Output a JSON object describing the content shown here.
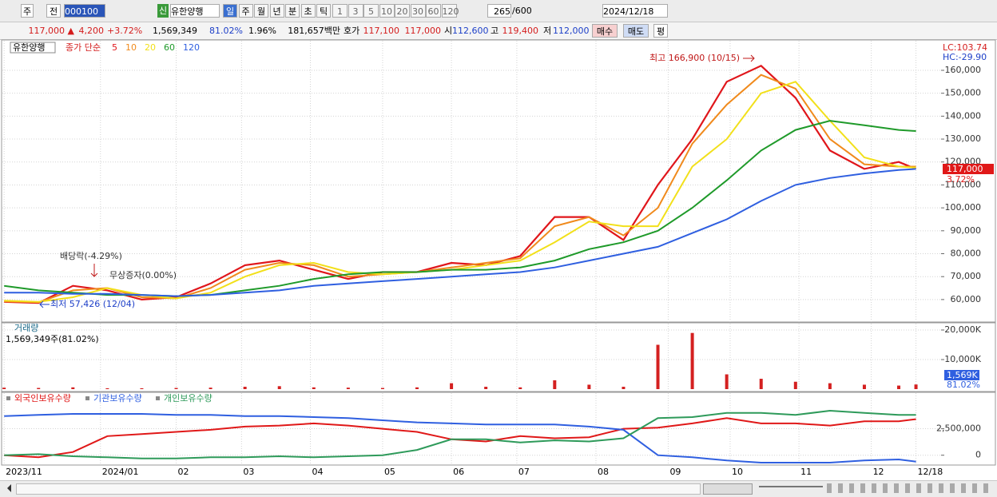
{
  "toolbar": {
    "period": "주",
    "prev": "전",
    "code": "000100",
    "badge": "신",
    "name": "유한양행",
    "units": [
      "일",
      "주",
      "월",
      "년",
      "분",
      "초",
      "틱"
    ],
    "steps": [
      "1",
      "3",
      "5",
      "10",
      "20",
      "30",
      "60",
      "120"
    ],
    "count": "265",
    "max": "/600",
    "date": "2024/12/18"
  },
  "quote": {
    "price": "117,000 ▲",
    "change": "4,200",
    "rate": "+3.72%",
    "volume": "1,569,349",
    "vol_ratio": "81.02%",
    "turnover": "1.96%",
    "amount": "181,657백만",
    "bid_label": "호가",
    "ask": "117,100",
    "bid": "117,000",
    "open_label": "시",
    "open": "112,600",
    "high_label": "고",
    "high": "119,400",
    "low_label": "저",
    "low": "112,000",
    "buy": "매수",
    "sell": "매도",
    "avg": "평"
  },
  "chart_data": [
    {
      "type": "line",
      "stock_name": "유한양행",
      "indicator": "종가 단순",
      "lc": "LC:103.74",
      "hc": "HC:-29.90",
      "annotations": [
        "최고 166,900 (10/15)",
        "배당락(-4.29%)",
        "무상증자(0.00%)",
        "최저 57,426 (12/04)"
      ],
      "last_price_label": "117,000",
      "last_change_label": "3.72%",
      "x": [
        0,
        10,
        20,
        30,
        40,
        50,
        60,
        70,
        80,
        90,
        100,
        110,
        120,
        130,
        140,
        150,
        160,
        170,
        180,
        190,
        200,
        210,
        220,
        230,
        240,
        250,
        260,
        265
      ],
      "xlim": [
        -0.5,
        272.3
      ],
      "ylim": [
        50200,
        171500
      ],
      "yticks": [
        {
          "value": 60000,
          "label": "60,000"
        },
        {
          "value": 70000,
          "label": "70,000"
        },
        {
          "value": 80000,
          "label": "80,000"
        },
        {
          "value": 90000,
          "label": "90,000"
        },
        {
          "value": 100000,
          "label": "100,000"
        },
        {
          "value": 110000,
          "label": "110,000"
        },
        {
          "value": 120000,
          "label": "120,000"
        },
        {
          "value": 130000,
          "label": "130,000"
        },
        {
          "value": 140000,
          "label": "140,000"
        },
        {
          "value": 150000,
          "label": "150,000"
        },
        {
          "value": 160000,
          "label": "160,000"
        }
      ],
      "series": [
        {
          "name": "5",
          "color": "#e0161b",
          "values": [
            59000,
            58500,
            66000,
            64000,
            60000,
            61000,
            67000,
            75000,
            77000,
            73000,
            69000,
            72000,
            72000,
            76000,
            75000,
            79000,
            96000,
            96000,
            86000,
            110000,
            130000,
            155000,
            162000,
            148000,
            125000,
            117000,
            120000,
            117000
          ]
        },
        {
          "name": "10",
          "color": "#f08a1c",
          "values": [
            59200,
            58800,
            64000,
            65000,
            61000,
            60500,
            65000,
            73000,
            76000,
            75000,
            70000,
            71000,
            72000,
            74000,
            76000,
            78000,
            92000,
            96000,
            88000,
            100000,
            128000,
            145000,
            158000,
            152000,
            130000,
            119000,
            118000,
            118000
          ]
        },
        {
          "name": "20",
          "color": "#f2e01a",
          "values": [
            59500,
            59000,
            61000,
            65000,
            62000,
            60500,
            63000,
            70000,
            75000,
            76000,
            72000,
            71000,
            72000,
            73000,
            75000,
            77000,
            85000,
            94000,
            92000,
            92000,
            118000,
            130000,
            150000,
            155000,
            138000,
            122000,
            118000,
            117500
          ]
        },
        {
          "name": "60",
          "color": "#1f9a2a",
          "values": [
            66000,
            64000,
            63000,
            62000,
            62000,
            61500,
            62000,
            64000,
            66000,
            69000,
            71000,
            72000,
            72000,
            73000,
            73000,
            74000,
            77000,
            82000,
            85000,
            90000,
            100000,
            112000,
            125000,
            134000,
            138000,
            136000,
            134000,
            133500
          ]
        },
        {
          "name": "120",
          "color": "#2f5fe0",
          "values": [
            63000,
            63000,
            62500,
            62500,
            62000,
            61500,
            62000,
            63000,
            64000,
            66000,
            67000,
            68000,
            69000,
            70000,
            71000,
            72000,
            74000,
            77000,
            80000,
            83000,
            89000,
            95000,
            103000,
            110000,
            113000,
            115000,
            116500,
            117000
          ]
        }
      ]
    },
    {
      "type": "bar",
      "title": "거래량",
      "subtitle": "1,569,349주(81.02%)",
      "last_label": "1,569K",
      "last_ratio": "81.02%",
      "color": "#d42020",
      "x": [
        0,
        10,
        20,
        30,
        40,
        50,
        60,
        70,
        80,
        90,
        100,
        110,
        120,
        130,
        140,
        150,
        160,
        170,
        180,
        190,
        200,
        210,
        220,
        230,
        240,
        250,
        260,
        265
      ],
      "xlim": [
        -0.5,
        272.3
      ],
      "ylim": [
        0,
        22160
      ],
      "yticks": [
        {
          "value": 10000,
          "label": "10,000K"
        },
        {
          "value": 20000,
          "label": "20,000K"
        }
      ],
      "values": [
        500,
        400,
        600,
        300,
        300,
        400,
        500,
        800,
        1000,
        600,
        500,
        400,
        600,
        2000,
        800,
        600,
        3000,
        1500,
        800,
        15000,
        19000,
        5000,
        3500,
        2500,
        2000,
        1500,
        1200,
        1569
      ]
    },
    {
      "type": "line",
      "x": [
        0,
        10,
        20,
        30,
        40,
        50,
        60,
        70,
        80,
        90,
        100,
        110,
        120,
        130,
        140,
        150,
        160,
        170,
        180,
        190,
        200,
        210,
        220,
        230,
        240,
        250,
        260,
        265
      ],
      "xlim": [
        -0.5,
        272.3
      ],
      "ylim": [
        -928000,
        5786000
      ],
      "yticks": [
        0,
        {
          "value": 2500000,
          "label": "2,500,000"
        }
      ],
      "xticks": [
        {
          "value": 0,
          "label": "2023/11"
        },
        {
          "value": 28,
          "label": "2024/01"
        },
        {
          "value": 50,
          "label": "02"
        },
        {
          "value": 69,
          "label": "03"
        },
        {
          "value": 89,
          "label": "04"
        },
        {
          "value": 110,
          "label": "05"
        },
        {
          "value": 130,
          "label": "06"
        },
        {
          "value": 149,
          "label": "07"
        },
        {
          "value": 172,
          "label": "08"
        },
        {
          "value": 193,
          "label": "09"
        },
        {
          "value": 211,
          "label": "10"
        },
        {
          "value": 231,
          "label": "11"
        },
        {
          "value": 252,
          "label": "12"
        },
        {
          "value": 265,
          "label": "12/18"
        }
      ],
      "series": [
        {
          "name": "외국인보유수량",
          "color": "#e01818",
          "values": [
            0,
            -200000,
            300000,
            1800000,
            2000000,
            2200000,
            2400000,
            2700000,
            2800000,
            3000000,
            2800000,
            2500000,
            2200000,
            1500000,
            1300000,
            1800000,
            1600000,
            1700000,
            2500000,
            2600000,
            3000000,
            3500000,
            3000000,
            3000000,
            2800000,
            3200000,
            3200000,
            3400000
          ]
        },
        {
          "name": "기관보유수량",
          "color": "#2f5fe0",
          "values": [
            3700000,
            3800000,
            3900000,
            3900000,
            3900000,
            3800000,
            3800000,
            3700000,
            3700000,
            3600000,
            3500000,
            3300000,
            3100000,
            3000000,
            2900000,
            2900000,
            2900000,
            2700000,
            2400000,
            0,
            -200000,
            -500000,
            -700000,
            -700000,
            -700000,
            -500000,
            -400000,
            -600000
          ]
        },
        {
          "name": "개인보유수량",
          "color": "#2e9a5a",
          "values": [
            0,
            100000,
            -100000,
            -200000,
            -300000,
            -300000,
            -200000,
            -200000,
            -100000,
            -200000,
            -100000,
            0,
            500000,
            1500000,
            1500000,
            1200000,
            1400000,
            1300000,
            1600000,
            3500000,
            3600000,
            4000000,
            4000000,
            3800000,
            4200000,
            4000000,
            3800000,
            3800000
          ]
        }
      ]
    }
  ]
}
